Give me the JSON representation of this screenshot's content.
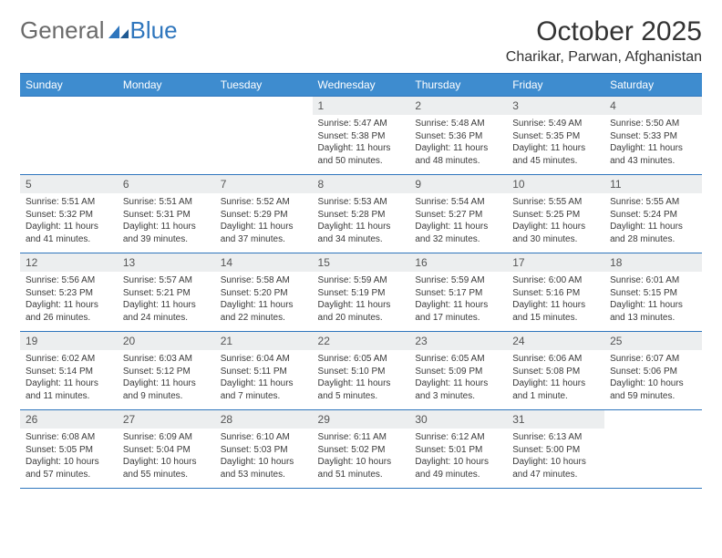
{
  "brand": {
    "part1": "General",
    "part2": "Blue"
  },
  "title": {
    "month": "October 2025",
    "location": "Charikar, Parwan, Afghanistan"
  },
  "colors": {
    "header_bg": "#3e8ccf",
    "border": "#2f76bd",
    "daynum_bg": "#eceeef",
    "text": "#3a3a3a",
    "background": "#ffffff"
  },
  "calendar": {
    "weekdays": [
      "Sunday",
      "Monday",
      "Tuesday",
      "Wednesday",
      "Thursday",
      "Friday",
      "Saturday"
    ],
    "weeks": [
      [
        null,
        null,
        null,
        {
          "n": "1",
          "sr": "5:47 AM",
          "ss": "5:38 PM",
          "dl": "11 hours and 50 minutes."
        },
        {
          "n": "2",
          "sr": "5:48 AM",
          "ss": "5:36 PM",
          "dl": "11 hours and 48 minutes."
        },
        {
          "n": "3",
          "sr": "5:49 AM",
          "ss": "5:35 PM",
          "dl": "11 hours and 45 minutes."
        },
        {
          "n": "4",
          "sr": "5:50 AM",
          "ss": "5:33 PM",
          "dl": "11 hours and 43 minutes."
        }
      ],
      [
        {
          "n": "5",
          "sr": "5:51 AM",
          "ss": "5:32 PM",
          "dl": "11 hours and 41 minutes."
        },
        {
          "n": "6",
          "sr": "5:51 AM",
          "ss": "5:31 PM",
          "dl": "11 hours and 39 minutes."
        },
        {
          "n": "7",
          "sr": "5:52 AM",
          "ss": "5:29 PM",
          "dl": "11 hours and 37 minutes."
        },
        {
          "n": "8",
          "sr": "5:53 AM",
          "ss": "5:28 PM",
          "dl": "11 hours and 34 minutes."
        },
        {
          "n": "9",
          "sr": "5:54 AM",
          "ss": "5:27 PM",
          "dl": "11 hours and 32 minutes."
        },
        {
          "n": "10",
          "sr": "5:55 AM",
          "ss": "5:25 PM",
          "dl": "11 hours and 30 minutes."
        },
        {
          "n": "11",
          "sr": "5:55 AM",
          "ss": "5:24 PM",
          "dl": "11 hours and 28 minutes."
        }
      ],
      [
        {
          "n": "12",
          "sr": "5:56 AM",
          "ss": "5:23 PM",
          "dl": "11 hours and 26 minutes."
        },
        {
          "n": "13",
          "sr": "5:57 AM",
          "ss": "5:21 PM",
          "dl": "11 hours and 24 minutes."
        },
        {
          "n": "14",
          "sr": "5:58 AM",
          "ss": "5:20 PM",
          "dl": "11 hours and 22 minutes."
        },
        {
          "n": "15",
          "sr": "5:59 AM",
          "ss": "5:19 PM",
          "dl": "11 hours and 20 minutes."
        },
        {
          "n": "16",
          "sr": "5:59 AM",
          "ss": "5:17 PM",
          "dl": "11 hours and 17 minutes."
        },
        {
          "n": "17",
          "sr": "6:00 AM",
          "ss": "5:16 PM",
          "dl": "11 hours and 15 minutes."
        },
        {
          "n": "18",
          "sr": "6:01 AM",
          "ss": "5:15 PM",
          "dl": "11 hours and 13 minutes."
        }
      ],
      [
        {
          "n": "19",
          "sr": "6:02 AM",
          "ss": "5:14 PM",
          "dl": "11 hours and 11 minutes."
        },
        {
          "n": "20",
          "sr": "6:03 AM",
          "ss": "5:12 PM",
          "dl": "11 hours and 9 minutes."
        },
        {
          "n": "21",
          "sr": "6:04 AM",
          "ss": "5:11 PM",
          "dl": "11 hours and 7 minutes."
        },
        {
          "n": "22",
          "sr": "6:05 AM",
          "ss": "5:10 PM",
          "dl": "11 hours and 5 minutes."
        },
        {
          "n": "23",
          "sr": "6:05 AM",
          "ss": "5:09 PM",
          "dl": "11 hours and 3 minutes."
        },
        {
          "n": "24",
          "sr": "6:06 AM",
          "ss": "5:08 PM",
          "dl": "11 hours and 1 minute."
        },
        {
          "n": "25",
          "sr": "6:07 AM",
          "ss": "5:06 PM",
          "dl": "10 hours and 59 minutes."
        }
      ],
      [
        {
          "n": "26",
          "sr": "6:08 AM",
          "ss": "5:05 PM",
          "dl": "10 hours and 57 minutes."
        },
        {
          "n": "27",
          "sr": "6:09 AM",
          "ss": "5:04 PM",
          "dl": "10 hours and 55 minutes."
        },
        {
          "n": "28",
          "sr": "6:10 AM",
          "ss": "5:03 PM",
          "dl": "10 hours and 53 minutes."
        },
        {
          "n": "29",
          "sr": "6:11 AM",
          "ss": "5:02 PM",
          "dl": "10 hours and 51 minutes."
        },
        {
          "n": "30",
          "sr": "6:12 AM",
          "ss": "5:01 PM",
          "dl": "10 hours and 49 minutes."
        },
        {
          "n": "31",
          "sr": "6:13 AM",
          "ss": "5:00 PM",
          "dl": "10 hours and 47 minutes."
        },
        null
      ]
    ],
    "labels": {
      "sunrise": "Sunrise:",
      "sunset": "Sunset:",
      "daylight": "Daylight:"
    }
  }
}
